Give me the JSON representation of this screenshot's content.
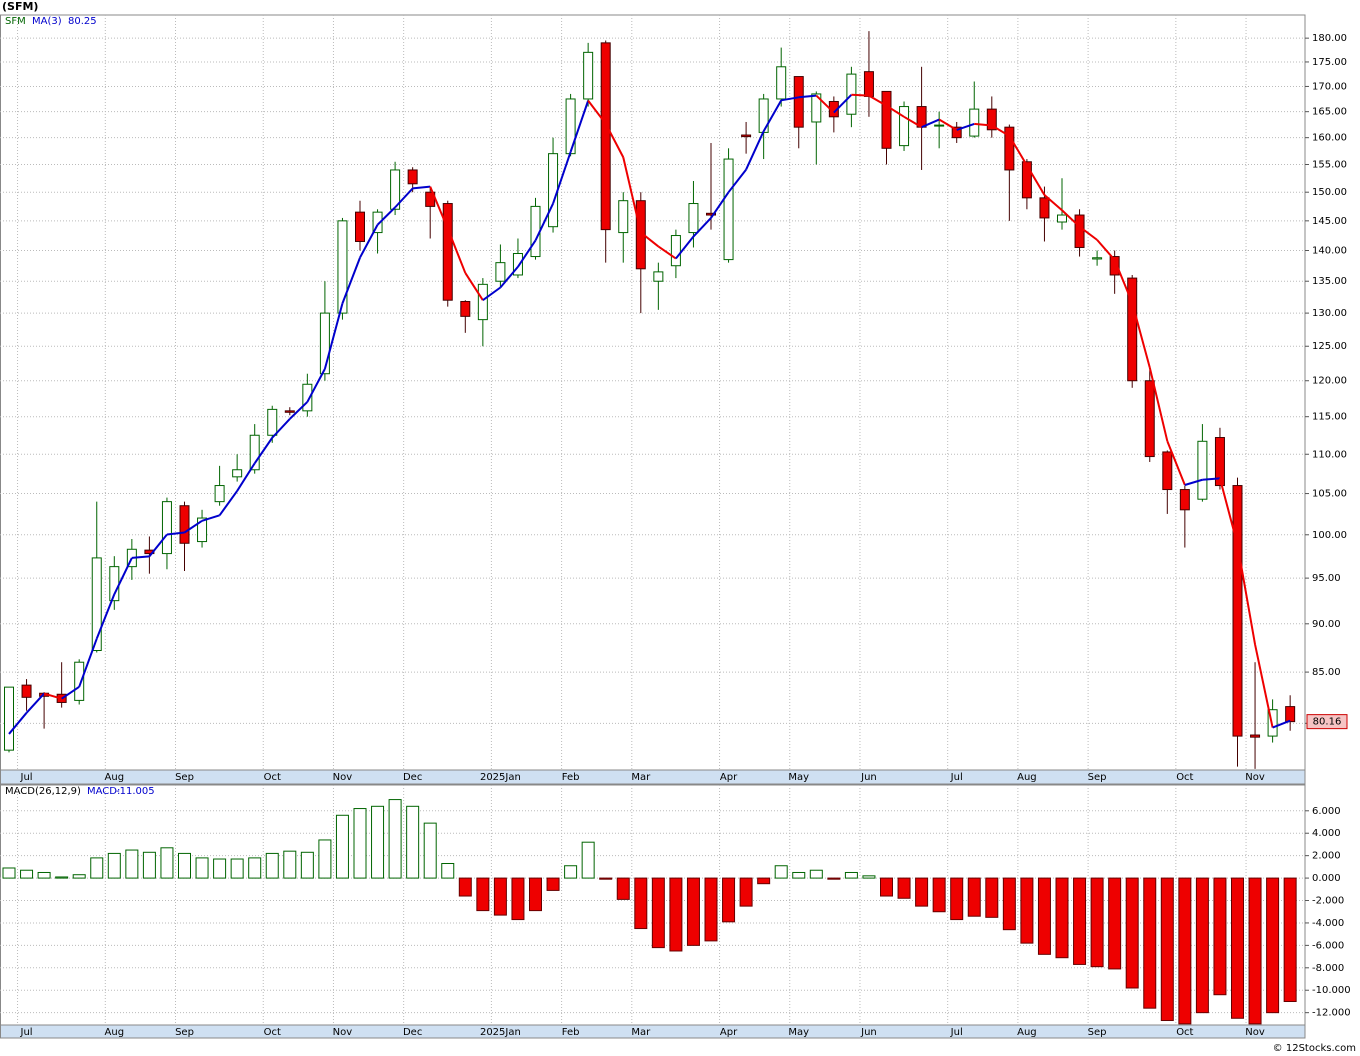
{
  "chart_data": [
    {
      "type": "candlestick",
      "title": "(SFM)",
      "name": "SFM",
      "categories": [
        null,
        "Jul",
        null,
        null,
        null,
        null,
        "Aug",
        null,
        null,
        null,
        "Sep",
        null,
        null,
        null,
        null,
        "Oct",
        null,
        null,
        null,
        "Nov",
        null,
        null,
        null,
        "Dec",
        null,
        null,
        null,
        null,
        "2025Jan",
        null,
        null,
        null,
        "Feb",
        null,
        null,
        null,
        "Mar",
        null,
        null,
        null,
        null,
        "Apr",
        null,
        null,
        null,
        "May",
        null,
        null,
        null,
        "Jun",
        null,
        null,
        null,
        null,
        "Jul",
        null,
        null,
        null,
        "Aug",
        null,
        null,
        null,
        "Sep",
        null,
        null,
        null,
        null,
        "Oct",
        null,
        null,
        null,
        "Nov",
        null,
        null
      ],
      "open": [
        77.5,
        83.7,
        82.9,
        82.8,
        82.2,
        87.2,
        92.5,
        96.3,
        98.2,
        97.8,
        103.5,
        99.2,
        104,
        107.1,
        108,
        112.5,
        115.8,
        115.8,
        121,
        130,
        146.5,
        143,
        147,
        154,
        150,
        148,
        131.8,
        129,
        135,
        136,
        139,
        144,
        157,
        167.5,
        179,
        143,
        148.5,
        135,
        137.5,
        143,
        146.3,
        138.5,
        160.5,
        161,
        167.5,
        172,
        163,
        167,
        164.5,
        173,
        169,
        158.5,
        166,
        162.3,
        162,
        160.3,
        165.5,
        162,
        155.5,
        149,
        144.8,
        146,
        138.6,
        139,
        135.5,
        120,
        110.3,
        105.5,
        104.3,
        112.2,
        106,
        78.9,
        78.8,
        81.6
      ],
      "high": [
        83.5,
        84.3,
        83.0,
        86.0,
        86.3,
        104,
        97.5,
        99.5,
        99.8,
        104.5,
        104,
        103,
        108.5,
        110,
        114,
        116.5,
        116.3,
        121,
        135,
        145.5,
        148.5,
        147,
        155.5,
        154.5,
        151,
        148.5,
        132,
        135.5,
        141,
        142,
        149,
        160,
        168.5,
        179,
        179.5,
        150,
        150,
        138,
        143.5,
        152,
        159,
        158,
        163,
        168.5,
        178,
        172,
        169,
        168,
        174,
        181.5,
        169,
        167,
        174,
        165,
        163,
        171,
        168,
        162.5,
        156,
        151,
        152.5,
        147,
        140,
        140,
        136,
        121.5,
        110.5,
        106,
        114,
        113.5,
        107,
        86,
        82.3,
        82.7
      ],
      "low": [
        77.3,
        81.2,
        79.5,
        81.5,
        81.8,
        87.0,
        91.5,
        94.8,
        95.5,
        96,
        95.8,
        98.5,
        103.5,
        106.5,
        107.5,
        111.5,
        115.2,
        115,
        120,
        129,
        140,
        139.5,
        146,
        150,
        142,
        131,
        127,
        125,
        134,
        135.5,
        138.5,
        143,
        156.5,
        166,
        138,
        138,
        130,
        130.5,
        135.5,
        140.5,
        143.5,
        138,
        157,
        156,
        166,
        158,
        155,
        161,
        162,
        164,
        155,
        157.5,
        154,
        158,
        159,
        160,
        160,
        145,
        147,
        141.5,
        143.5,
        139,
        137.5,
        133,
        119,
        109,
        102.5,
        98.5,
        104,
        105.5,
        76,
        75.8,
        78.2,
        79.3
      ],
      "close": [
        83.5,
        82.5,
        82.6,
        82.0,
        86.0,
        97.3,
        96.3,
        98.3,
        97.8,
        104,
        99,
        102,
        106,
        108,
        112.5,
        116,
        115.6,
        119.5,
        130,
        145,
        141.5,
        146.5,
        154,
        151.5,
        147.5,
        132,
        129.5,
        134.5,
        138,
        139.5,
        147.5,
        157,
        167.5,
        177,
        143.5,
        148.5,
        137,
        136.5,
        142.5,
        148,
        146,
        156,
        160.2,
        167.5,
        174,
        162,
        168.5,
        164,
        172.5,
        168,
        158,
        166,
        162,
        162.4,
        160,
        165.5,
        161.5,
        154,
        149,
        145.5,
        146,
        140.5,
        138.8,
        136,
        120,
        109.7,
        105.5,
        103,
        111.7,
        106,
        78.8,
        78.7,
        81.3,
        80.16
      ],
      "up_color": "#006400",
      "down_color": "#ee0000",
      "ma": {
        "name": "MA(3)",
        "up_color": "#0000cc",
        "down_color": "#ee0000",
        "values": [
          79,
          81,
          82.87,
          82.37,
          83.53,
          88.43,
          93.2,
          97.3,
          97.47,
          100.03,
          100.27,
          101.67,
          102.33,
          105.33,
          108.83,
          112.17,
          114.7,
          117.03,
          121.7,
          131.5,
          138.83,
          144.33,
          147.33,
          150.67,
          151,
          143.67,
          136.33,
          132,
          134,
          137.33,
          141.67,
          148,
          157.33,
          167.17,
          162.67,
          156.33,
          143,
          140.67,
          138.67,
          142.33,
          145.5,
          150,
          154.07,
          161.23,
          167.23,
          167.83,
          168.17,
          164.83,
          168.33,
          168.17,
          166.17,
          164,
          162,
          163.47,
          161.47,
          162.63,
          162.33,
          160.33,
          154.83,
          149.5,
          146.83,
          144,
          141.77,
          138.43,
          131.6,
          121.9,
          111.73,
          106.07,
          106.73,
          106.9,
          98.83,
          87.83,
          79.6,
          80.25
        ]
      },
      "log_scale": true,
      "ylim": [
        75.7,
        185
      ],
      "yticks": [
        {
          "value": 80,
          "label": "80.00"
        },
        {
          "value": 85,
          "label": "85.00"
        },
        {
          "value": 90,
          "label": "90.00"
        },
        {
          "value": 95,
          "label": "95.00"
        },
        {
          "value": 100,
          "label": "100.00"
        },
        {
          "value": 105,
          "label": "105.00"
        },
        {
          "value": 110,
          "label": "110.00"
        },
        {
          "value": 115,
          "label": "115.00"
        },
        {
          "value": 120,
          "label": "120.00"
        },
        {
          "value": 125,
          "label": "125.00"
        },
        {
          "value": 130,
          "label": "130.00"
        },
        {
          "value": 135,
          "label": "135.00"
        },
        {
          "value": 140,
          "label": "140.00"
        },
        {
          "value": 145,
          "label": "145.00"
        },
        {
          "value": 150,
          "label": "150.00"
        },
        {
          "value": 155,
          "label": "155.00"
        },
        {
          "value": 160,
          "label": "160.00"
        },
        {
          "value": 165,
          "label": "165.00"
        },
        {
          "value": 170,
          "label": "170.00"
        },
        {
          "value": 175,
          "label": "175.00"
        },
        {
          "value": 180,
          "label": "180.00"
        }
      ],
      "grid": true
    },
    {
      "type": "bar",
      "title": "MACD(26,12,9)",
      "value_name": "MACD:",
      "categories": [
        null,
        "Jul",
        null,
        null,
        null,
        null,
        "Aug",
        null,
        null,
        null,
        "Sep",
        null,
        null,
        null,
        null,
        "Oct",
        null,
        null,
        null,
        "Nov",
        null,
        null,
        null,
        "Dec",
        null,
        null,
        null,
        null,
        "2025Jan",
        null,
        null,
        null,
        "Feb",
        null,
        null,
        null,
        "Mar",
        null,
        null,
        null,
        null,
        "Apr",
        null,
        null,
        null,
        "May",
        null,
        null,
        null,
        "Jun",
        null,
        null,
        null,
        null,
        "Jul",
        null,
        null,
        null,
        "Aug",
        null,
        null,
        null,
        "Sep",
        null,
        null,
        null,
        null,
        "Oct",
        null,
        null,
        null,
        "Nov",
        null,
        null
      ],
      "values": [
        0.9,
        0.7,
        0.5,
        0.1,
        0.3,
        1.8,
        2.2,
        2.5,
        2.3,
        2.7,
        2.2,
        1.8,
        1.7,
        1.7,
        1.8,
        2.2,
        2.4,
        2.3,
        3.4,
        5.6,
        6.2,
        6.4,
        7.0,
        6.4,
        4.9,
        1.3,
        -1.6,
        -2.9,
        -3.3,
        -3.7,
        -2.9,
        -1.1,
        1.1,
        3.2,
        -0.1,
        -1.9,
        -4.5,
        -6.2,
        -6.5,
        -6.0,
        -5.6,
        -3.9,
        -2.5,
        -0.5,
        1.1,
        0.5,
        0.7,
        -0.1,
        0.5,
        0.2,
        -1.6,
        -1.8,
        -2.5,
        -3.0,
        -3.7,
        -3.4,
        -3.5,
        -4.6,
        -5.8,
        -6.8,
        -7.1,
        -7.7,
        -7.9,
        -8.1,
        -9.8,
        -11.6,
        -12.7,
        -13.0,
        -12.0,
        -10.4,
        -12.5,
        -13.0,
        -12.0,
        -11.005
      ],
      "up_color": "#006400",
      "down_color": "#ee0000",
      "ylim": [
        -13.1,
        8.3
      ],
      "yticks": [
        {
          "value": 6,
          "label": "6.000"
        },
        {
          "value": 4,
          "label": "4.000"
        },
        {
          "value": 2,
          "label": "2.000"
        },
        {
          "value": 0,
          "label": "0.000"
        },
        {
          "value": -2,
          "label": "-2.000"
        },
        {
          "value": -4,
          "label": "-4.000"
        },
        {
          "value": -6,
          "label": "-6.000"
        },
        {
          "value": -8,
          "label": "-8.000"
        },
        {
          "value": -10,
          "label": "-10.000"
        },
        {
          "value": -12,
          "label": "-12.000"
        }
      ],
      "grid": true
    }
  ],
  "footer": "© 12Stocks.com"
}
